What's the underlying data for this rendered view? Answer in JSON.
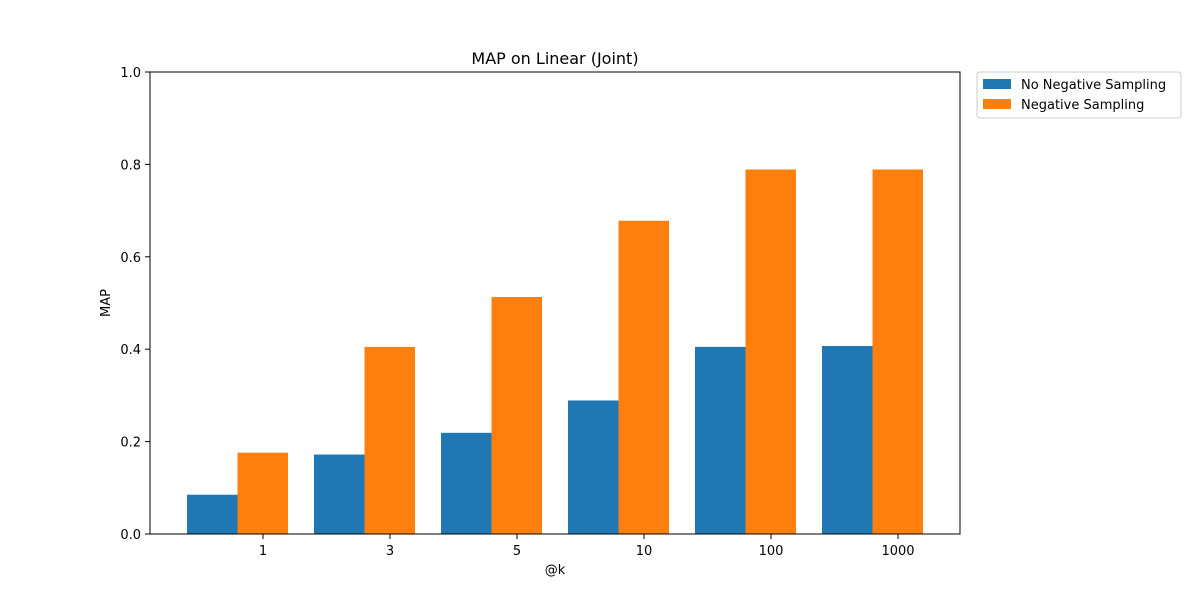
{
  "chart_data": {
    "type": "bar",
    "title": "MAP on Linear (Joint)",
    "xlabel": "@k",
    "ylabel": "MAP",
    "categories": [
      "1",
      "3",
      "5",
      "10",
      "100",
      "1000"
    ],
    "series": [
      {
        "name": "No Negative Sampling",
        "values": [
          0.085,
          0.172,
          0.219,
          0.289,
          0.405,
          0.407
        ]
      },
      {
        "name": "Negative Sampling",
        "values": [
          0.176,
          0.405,
          0.513,
          0.678,
          0.789,
          0.789
        ]
      }
    ],
    "ylim": [
      0,
      1.0
    ],
    "yticks": [
      0.0,
      0.2,
      0.4,
      0.6,
      0.8,
      1.0
    ],
    "ytick_labels": [
      "0.0",
      "0.2",
      "0.4",
      "0.6",
      "0.8",
      "1.0"
    ],
    "grid": false,
    "legend_position": "outside-top-right",
    "colors": [
      "#1f77b4",
      "#ff7f0e"
    ]
  }
}
